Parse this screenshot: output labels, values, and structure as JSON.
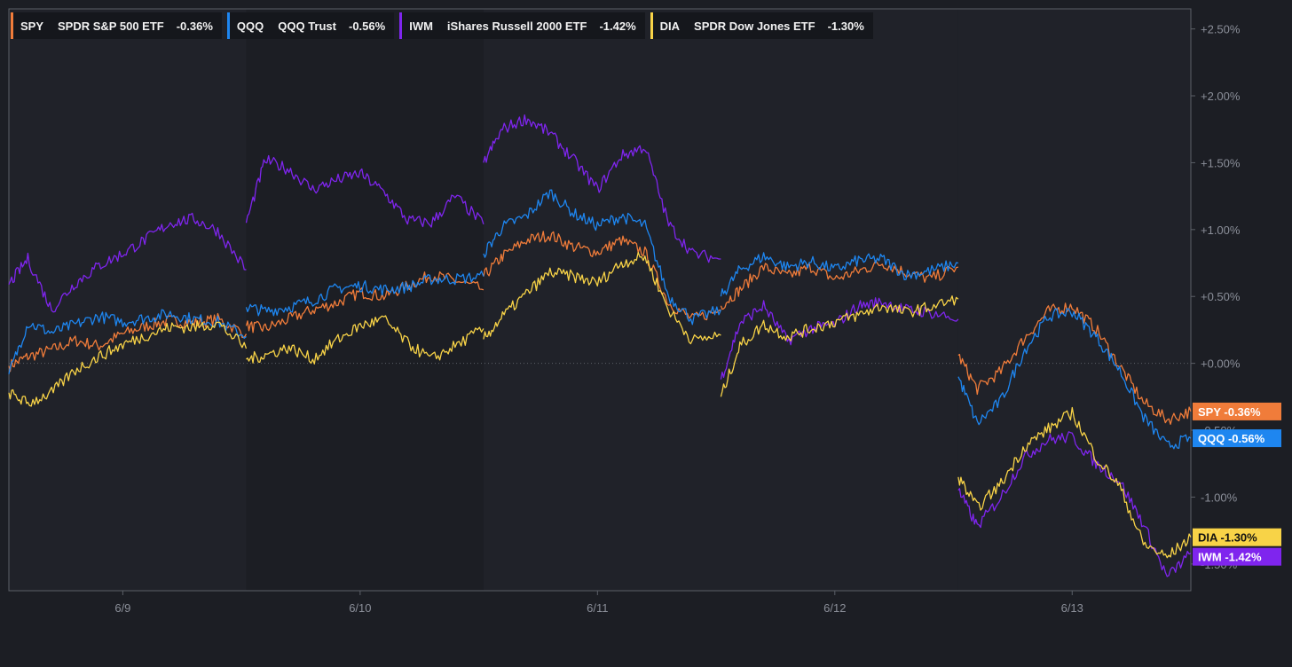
{
  "chart_data": {
    "type": "line",
    "title": "",
    "xlabel": "",
    "ylabel": "",
    "ylim": [
      -1.7,
      2.65
    ],
    "xlim": [
      -0.48,
      4.5
    ],
    "y_ticks": [
      {
        "value": 2.5,
        "label": "+2.50%"
      },
      {
        "value": 2.0,
        "label": "+2.00%"
      },
      {
        "value": 1.5,
        "label": "+1.50%"
      },
      {
        "value": 1.0,
        "label": "+1.00%"
      },
      {
        "value": 0.5,
        "label": "+0.50%"
      },
      {
        "value": 0.0,
        "label": "+0.00%"
      },
      {
        "value": -0.5,
        "label": "-0.50%"
      },
      {
        "value": -1.0,
        "label": "-1.00%"
      },
      {
        "value": -1.5,
        "label": "-1.50%"
      }
    ],
    "x_ticks": [
      {
        "value": 0,
        "label": "6/9"
      },
      {
        "value": 1,
        "label": "6/10"
      },
      {
        "value": 2,
        "label": "6/11"
      },
      {
        "value": 3,
        "label": "6/12"
      },
      {
        "value": 4,
        "label": "6/13"
      }
    ],
    "sessions": [
      {
        "start": -0.48,
        "end": 0.52,
        "shade": "#202229"
      },
      {
        "start": 0.52,
        "end": 1.52,
        "shade": "#1c1e24"
      },
      {
        "start": 1.52,
        "end": 2.52,
        "shade": "#202229"
      },
      {
        "start": 2.52,
        "end": 3.52,
        "shade": "#202229"
      },
      {
        "start": 3.52,
        "end": 4.5,
        "shade": "#202229"
      }
    ],
    "zero_line": true,
    "legend_position": "top-left",
    "series": [
      {
        "ticker": "SPY",
        "name": "SPDR S&P 500 ETF",
        "change": "-0.36%",
        "tag": "SPY   -0.36%",
        "color": "#f07c3a",
        "last": -0.36,
        "segments": [
          {
            "x": [
              -0.48,
              -0.4,
              -0.3,
              -0.2,
              -0.1,
              0.0,
              0.1,
              0.2,
              0.3,
              0.4,
              0.52
            ],
            "y": [
              -0.02,
              0.05,
              0.1,
              0.17,
              0.13,
              0.22,
              0.28,
              0.32,
              0.3,
              0.33,
              0.22
            ]
          },
          {
            "x": [
              0.52,
              0.6,
              0.7,
              0.8,
              0.9,
              1.0,
              1.1,
              1.2,
              1.3,
              1.4,
              1.52
            ],
            "y": [
              0.28,
              0.26,
              0.33,
              0.4,
              0.45,
              0.53,
              0.5,
              0.58,
              0.66,
              0.62,
              0.55
            ]
          },
          {
            "x": [
              1.52,
              1.6,
              1.7,
              1.8,
              1.9,
              2.0,
              2.1,
              2.2,
              2.3,
              2.4,
              2.52
            ],
            "y": [
              0.65,
              0.8,
              0.92,
              0.96,
              0.87,
              0.83,
              0.92,
              0.83,
              0.45,
              0.33,
              0.4
            ]
          },
          {
            "x": [
              2.52,
              2.6,
              2.7,
              2.8,
              2.9,
              3.0,
              3.1,
              3.2,
              3.3,
              3.4,
              3.52
            ],
            "y": [
              0.43,
              0.55,
              0.72,
              0.65,
              0.72,
              0.63,
              0.69,
              0.75,
              0.68,
              0.63,
              0.72
            ]
          },
          {
            "x": [
              3.52,
              3.6,
              3.7,
              3.8,
              3.9,
              4.0,
              4.1,
              4.2,
              4.3,
              4.4,
              4.5
            ],
            "y": [
              0.06,
              -0.19,
              -0.06,
              0.19,
              0.39,
              0.43,
              0.26,
              -0.02,
              -0.29,
              -0.42,
              -0.36
            ]
          }
        ]
      },
      {
        "ticker": "QQQ",
        "name": "QQQ Trust",
        "change": "-0.56%",
        "tag": "QQQ   -0.56%",
        "color": "#1e86f0",
        "last": -0.56,
        "segments": [
          {
            "x": [
              -0.48,
              -0.4,
              -0.3,
              -0.2,
              -0.1,
              0.0,
              0.1,
              0.2,
              0.3,
              0.4,
              0.52
            ],
            "y": [
              -0.08,
              0.3,
              0.23,
              0.29,
              0.35,
              0.31,
              0.34,
              0.37,
              0.33,
              0.31,
              0.2
            ]
          },
          {
            "x": [
              0.52,
              0.6,
              0.7,
              0.8,
              0.9,
              1.0,
              1.1,
              1.2,
              1.3,
              1.4,
              1.52
            ],
            "y": [
              0.42,
              0.39,
              0.42,
              0.47,
              0.56,
              0.58,
              0.55,
              0.57,
              0.63,
              0.63,
              0.65
            ]
          },
          {
            "x": [
              1.52,
              1.6,
              1.7,
              1.8,
              1.9,
              2.0,
              2.1,
              2.2,
              2.3,
              2.4,
              2.52
            ],
            "y": [
              0.82,
              1.02,
              1.1,
              1.28,
              1.12,
              1.03,
              1.1,
              1.03,
              0.5,
              0.33,
              0.4
            ]
          },
          {
            "x": [
              2.52,
              2.6,
              2.7,
              2.8,
              2.9,
              3.0,
              3.1,
              3.2,
              3.3,
              3.4,
              3.52
            ],
            "y": [
              0.5,
              0.7,
              0.8,
              0.72,
              0.76,
              0.7,
              0.77,
              0.78,
              0.66,
              0.69,
              0.75
            ]
          },
          {
            "x": [
              3.52,
              3.6,
              3.7,
              3.8,
              3.9,
              4.0,
              4.1,
              4.2,
              4.3,
              4.4,
              4.5
            ],
            "y": [
              -0.1,
              -0.45,
              -0.28,
              0.1,
              0.35,
              0.39,
              0.2,
              -0.05,
              -0.4,
              -0.62,
              -0.56
            ]
          }
        ]
      },
      {
        "ticker": "IWM",
        "name": "iShares Russell 2000 ETF",
        "change": "-1.42%",
        "tag": "IWM   -1.42%",
        "color": "#7f25ee",
        "last": -1.42,
        "segments": [
          {
            "x": [
              -0.48,
              -0.4,
              -0.3,
              -0.2,
              -0.1,
              0.0,
              0.1,
              0.2,
              0.3,
              0.4,
              0.52
            ],
            "y": [
              0.59,
              0.78,
              0.4,
              0.6,
              0.73,
              0.82,
              0.93,
              1.05,
              1.08,
              0.99,
              0.7
            ]
          },
          {
            "x": [
              0.52,
              0.6,
              0.7,
              0.8,
              0.9,
              1.0,
              1.1,
              1.2,
              1.3,
              1.4,
              1.52
            ],
            "y": [
              1.05,
              1.52,
              1.45,
              1.3,
              1.37,
              1.42,
              1.28,
              1.07,
              1.05,
              1.25,
              1.04
            ]
          },
          {
            "x": [
              1.52,
              1.6,
              1.7,
              1.8,
              1.9,
              2.0,
              2.1,
              2.2,
              2.3,
              2.4,
              2.52
            ],
            "y": [
              1.5,
              1.75,
              1.83,
              1.72,
              1.52,
              1.3,
              1.55,
              1.62,
              1.04,
              0.82,
              0.78
            ]
          },
          {
            "x": [
              2.52,
              2.6,
              2.7,
              2.8,
              2.9,
              3.0,
              3.1,
              3.2,
              3.3,
              3.4,
              3.52
            ],
            "y": [
              -0.12,
              0.3,
              0.43,
              0.17,
              0.26,
              0.29,
              0.43,
              0.46,
              0.4,
              0.38,
              0.33
            ]
          },
          {
            "x": [
              3.52,
              3.6,
              3.7,
              3.8,
              3.9,
              4.0,
              4.1,
              4.2,
              4.3,
              4.4,
              4.5
            ],
            "y": [
              -0.95,
              -1.22,
              -1.0,
              -0.7,
              -0.57,
              -0.55,
              -0.75,
              -0.88,
              -1.2,
              -1.6,
              -1.42
            ]
          }
        ]
      },
      {
        "ticker": "DIA",
        "name": "SPDR Dow Jones ETF",
        "change": "-1.30%",
        "tag": "DIA   -1.30%",
        "color": "#f8d347",
        "last": -1.3,
        "segments": [
          {
            "x": [
              -0.48,
              -0.4,
              -0.3,
              -0.2,
              -0.1,
              0.0,
              0.1,
              0.2,
              0.3,
              0.4,
              0.52
            ],
            "y": [
              -0.22,
              -0.3,
              -0.22,
              -0.05,
              0.05,
              0.14,
              0.21,
              0.27,
              0.27,
              0.3,
              0.11
            ]
          },
          {
            "x": [
              0.52,
              0.6,
              0.7,
              0.8,
              0.9,
              1.0,
              1.1,
              1.2,
              1.3,
              1.4,
              1.52
            ],
            "y": [
              0.03,
              0.06,
              0.12,
              0.03,
              0.17,
              0.28,
              0.33,
              0.15,
              0.03,
              0.13,
              0.26
            ]
          },
          {
            "x": [
              1.52,
              1.6,
              1.7,
              1.8,
              1.9,
              2.0,
              2.1,
              2.2,
              2.3,
              2.4,
              2.52
            ],
            "y": [
              0.18,
              0.35,
              0.52,
              0.68,
              0.65,
              0.6,
              0.75,
              0.8,
              0.4,
              0.17,
              0.21
            ]
          },
          {
            "x": [
              2.52,
              2.6,
              2.7,
              2.8,
              2.9,
              3.0,
              3.1,
              3.2,
              3.3,
              3.4,
              3.52
            ],
            "y": [
              -0.25,
              0.13,
              0.29,
              0.2,
              0.26,
              0.31,
              0.36,
              0.43,
              0.38,
              0.42,
              0.48
            ]
          },
          {
            "x": [
              3.52,
              3.6,
              3.7,
              3.8,
              3.9,
              4.0,
              4.1,
              4.2,
              4.3,
              4.4,
              4.5
            ],
            "y": [
              -0.85,
              -1.08,
              -0.9,
              -0.62,
              -0.49,
              -0.37,
              -0.7,
              -0.92,
              -1.35,
              -1.45,
              -1.3
            ]
          }
        ]
      }
    ]
  }
}
